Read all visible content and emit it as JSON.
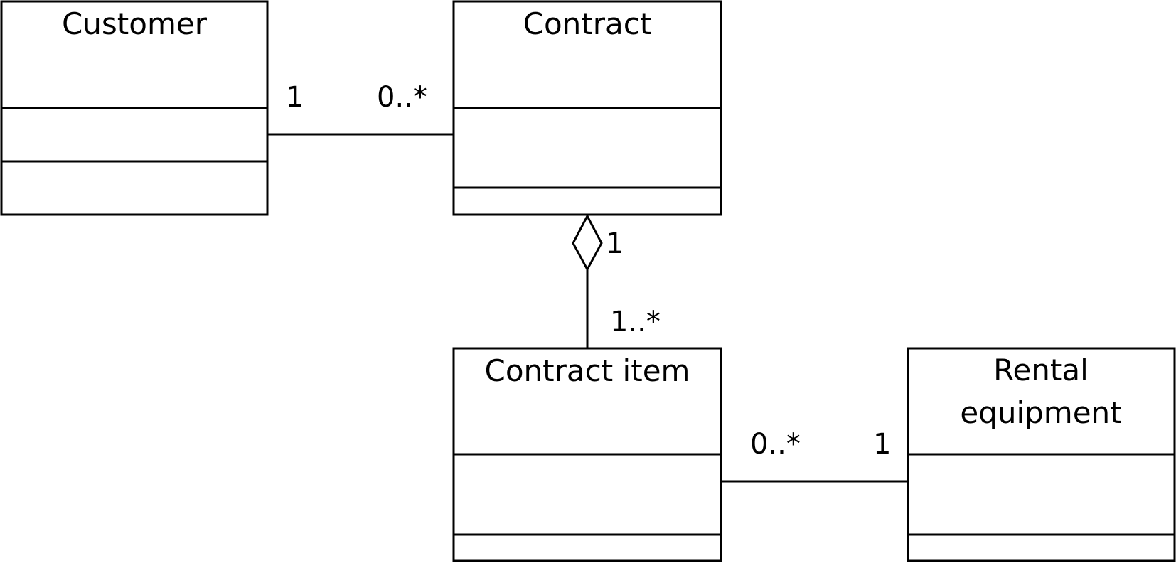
{
  "classes": {
    "customer": {
      "name": "Customer"
    },
    "contract": {
      "name": "Contract"
    },
    "contract_item": {
      "name": "Contract item"
    },
    "rental_equipment": {
      "name_line1": "Rental",
      "name_line2": "equipment"
    }
  },
  "associations": {
    "customer_contract": {
      "customer_end": "1",
      "contract_end": "0..*"
    },
    "contract_contractitem": {
      "contract_end": "1",
      "item_end": "1..*",
      "kind": "aggregation"
    },
    "contractitem_rental": {
      "item_end": "0..*",
      "rental_end": "1"
    }
  }
}
